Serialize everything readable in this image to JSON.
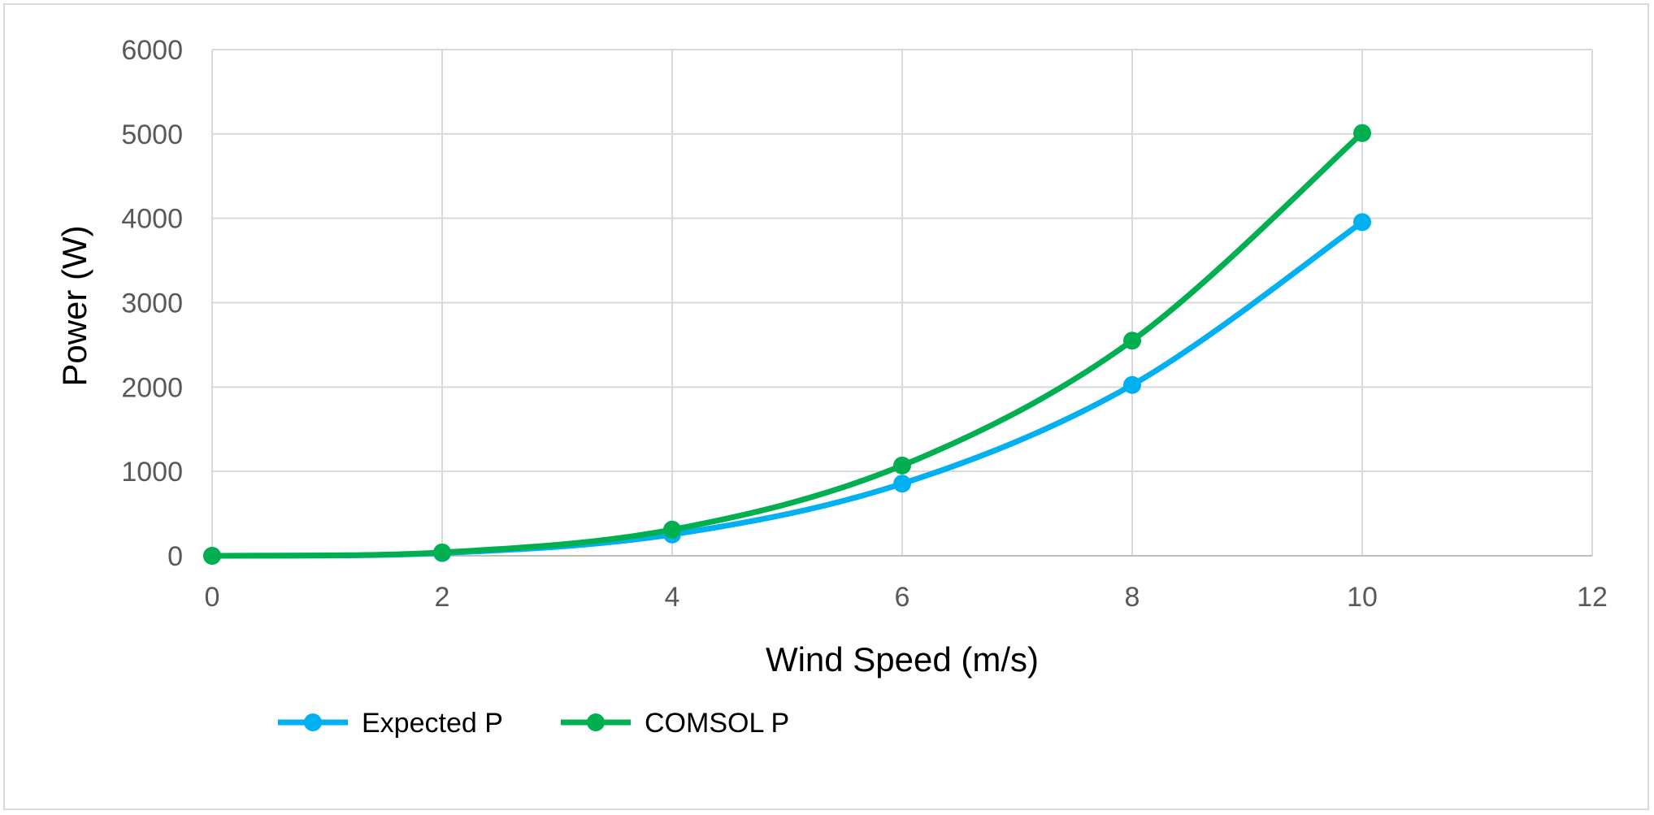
{
  "chart_data": {
    "type": "line",
    "title": "",
    "xlabel": "Wind Speed (m/s)",
    "ylabel": "Power (W)",
    "xlim": [
      0,
      12
    ],
    "ylim": [
      0,
      6000
    ],
    "x_ticks": [
      0,
      2,
      4,
      6,
      8,
      10,
      12
    ],
    "y_ticks": [
      0,
      1000,
      2000,
      3000,
      4000,
      5000,
      6000
    ],
    "grid": true,
    "smooth": true,
    "legend_position": "bottom-left",
    "series": [
      {
        "name": "Expected P",
        "color": "#00B0F0",
        "x": [
          0,
          2,
          4,
          6,
          8,
          10
        ],
        "y": [
          0,
          32,
          253,
          855,
          2025,
          3955
        ]
      },
      {
        "name": "COMSOL P",
        "color": "#00B050",
        "x": [
          0,
          2,
          4,
          6,
          8,
          10
        ],
        "y": [
          0,
          40,
          310,
          1070,
          2550,
          5010
        ]
      }
    ]
  }
}
